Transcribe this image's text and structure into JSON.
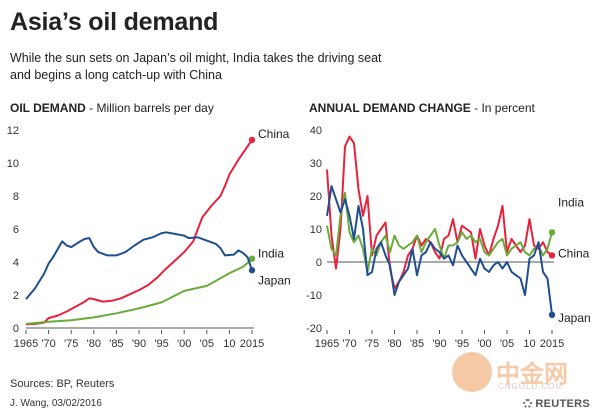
{
  "title": "Asia’s oil demand",
  "subtitle": [
    "While the sun sets on Japan’s oil might, India takes the driving seat",
    "and begins a long catch-up with China"
  ],
  "footer": {
    "sources": "Sources: BP, Reuters",
    "byline": "J. Wang, 03/02/2016",
    "logo": "REUTERS"
  },
  "watermark": {
    "text": "中金网",
    "url": "CNGOLD.COM"
  },
  "colors": {
    "china": "#e8213c",
    "india": "#6aab3a",
    "japan": "#1f4e91"
  },
  "chart_data": [
    {
      "type": "line",
      "title": "OIL DEMAND",
      "unit": "Million barrels per day",
      "ylim": [
        0,
        12
      ],
      "yticks": [
        0,
        2,
        4,
        6,
        8,
        10,
        12
      ],
      "xlim": [
        1965,
        2015
      ],
      "xtick_values": [
        1965,
        1970,
        1975,
        1980,
        1985,
        1990,
        1995,
        2000,
        2005,
        2010,
        2015
      ],
      "xtick_labels": [
        "1965",
        "'70",
        "'75",
        "'80",
        "'85",
        "'90",
        "'95",
        "'00",
        "'05",
        "10",
        "2015"
      ],
      "series": [
        {
          "name": "China",
          "key": "china",
          "x": [
            1965,
            1967,
            1969,
            1970,
            1972,
            1974,
            1976,
            1978,
            1979,
            1980,
            1982,
            1984,
            1986,
            1988,
            1990,
            1992,
            1994,
            1996,
            1998,
            2000,
            2002,
            2004,
            2006,
            2008,
            2009,
            2010,
            2012,
            2014,
            2015
          ],
          "values": [
            0.22,
            0.25,
            0.33,
            0.6,
            0.75,
            1.0,
            1.3,
            1.6,
            1.8,
            1.75,
            1.6,
            1.65,
            1.8,
            2.05,
            2.3,
            2.6,
            3.05,
            3.6,
            4.1,
            4.6,
            5.25,
            6.7,
            7.4,
            8.0,
            8.6,
            9.3,
            10.2,
            11.0,
            11.4
          ]
        },
        {
          "name": "India",
          "key": "india",
          "x": [
            1965,
            1970,
            1975,
            1980,
            1985,
            1990,
            1995,
            2000,
            2005,
            2010,
            2013,
            2015
          ],
          "values": [
            0.25,
            0.38,
            0.47,
            0.64,
            0.89,
            1.19,
            1.55,
            2.25,
            2.55,
            3.32,
            3.7,
            4.2
          ]
        },
        {
          "name": "Japan",
          "key": "japan",
          "x": [
            1965,
            1967,
            1969,
            1970,
            1971,
            1973,
            1974,
            1975,
            1977,
            1978,
            1979,
            1980,
            1981,
            1983,
            1985,
            1987,
            1989,
            1991,
            1993,
            1995,
            1996,
            1997,
            1999,
            2000,
            2001,
            2003,
            2005,
            2007,
            2008,
            2009,
            2011,
            2012,
            2013,
            2014,
            2015
          ],
          "values": [
            1.75,
            2.4,
            3.3,
            3.9,
            4.3,
            5.25,
            5.0,
            4.9,
            5.25,
            5.4,
            5.45,
            4.9,
            4.6,
            4.4,
            4.4,
            4.6,
            5.0,
            5.35,
            5.5,
            5.75,
            5.8,
            5.75,
            5.65,
            5.6,
            5.45,
            5.5,
            5.3,
            5.1,
            4.85,
            4.4,
            4.45,
            4.7,
            4.55,
            4.3,
            3.5
          ]
        }
      ]
    },
    {
      "type": "line",
      "title": "ANNUAL DEMAND CHANGE",
      "unit": "In percent",
      "ylim": [
        -20,
        40
      ],
      "yticks": [
        -20,
        -10,
        0,
        10,
        20,
        30,
        40
      ],
      "xlim": [
        1965,
        2015
      ],
      "xtick_values": [
        1965,
        1970,
        1975,
        1980,
        1985,
        1990,
        1995,
        2000,
        2005,
        2010,
        2015
      ],
      "xtick_labels": [
        "1965",
        "'70",
        "'75",
        "'80",
        "'85",
        "'90",
        "'95",
        "'00",
        "'05",
        "10",
        "2015"
      ],
      "series": [
        {
          "name": "China",
          "key": "china",
          "x": [
            1965,
            1966,
            1967,
            1968,
            1969,
            1970,
            1971,
            1972,
            1973,
            1974,
            1975,
            1976,
            1977,
            1978,
            1979,
            1980,
            1981,
            1982,
            1983,
            1984,
            1985,
            1986,
            1987,
            1988,
            1989,
            1990,
            1991,
            1992,
            1993,
            1994,
            1995,
            1996,
            1997,
            1998,
            1999,
            2000,
            2001,
            2002,
            2003,
            2004,
            2005,
            2006,
            2007,
            2008,
            2009,
            2010,
            2011,
            2012,
            2013,
            2014,
            2015
          ],
          "values": [
            28,
            8,
            -2,
            10,
            35,
            38,
            36,
            22,
            14,
            20,
            2,
            8,
            10,
            12,
            -2,
            -8,
            -6,
            -3,
            2,
            4,
            8,
            5,
            7,
            6,
            3,
            1,
            7,
            8,
            13,
            6,
            11,
            10,
            9,
            1,
            10,
            5,
            2,
            7,
            11,
            17,
            3,
            7,
            5,
            3,
            5,
            13,
            5,
            4,
            6,
            3,
            2
          ]
        },
        {
          "name": "India",
          "key": "india",
          "x": [
            1965,
            1966,
            1967,
            1968,
            1969,
            1970,
            1971,
            1972,
            1973,
            1974,
            1975,
            1976,
            1977,
            1978,
            1979,
            1980,
            1981,
            1982,
            1983,
            1984,
            1985,
            1986,
            1987,
            1988,
            1989,
            1990,
            1991,
            1992,
            1993,
            1994,
            1995,
            1996,
            1997,
            1998,
            1999,
            2000,
            2001,
            2002,
            2003,
            2004,
            2005,
            2006,
            2007,
            2008,
            2009,
            2010,
            2011,
            2012,
            2013,
            2014,
            2015
          ],
          "values": [
            11,
            4,
            2,
            14,
            21,
            9,
            6,
            8,
            4,
            -3,
            4,
            2,
            6,
            8,
            3,
            8,
            5,
            4,
            5,
            6,
            8,
            3,
            6,
            8,
            10,
            5,
            1,
            5,
            5,
            6,
            9,
            7,
            8,
            6,
            7,
            3,
            2,
            4,
            6,
            7,
            2,
            4,
            5,
            6,
            3,
            2,
            4,
            5,
            2,
            4,
            9
          ]
        },
        {
          "name": "Japan",
          "key": "japan",
          "x": [
            1965,
            1966,
            1967,
            1968,
            1969,
            1970,
            1971,
            1972,
            1973,
            1974,
            1975,
            1976,
            1977,
            1978,
            1979,
            1980,
            1981,
            1982,
            1983,
            1984,
            1985,
            1986,
            1987,
            1988,
            1989,
            1990,
            1991,
            1992,
            1993,
            1994,
            1995,
            1996,
            1997,
            1998,
            1999,
            2000,
            2001,
            2002,
            2003,
            2004,
            2005,
            2006,
            2007,
            2008,
            2009,
            2010,
            2011,
            2012,
            2013,
            2014,
            2015
          ],
          "values": [
            14,
            23,
            19,
            15,
            19,
            14,
            7,
            17,
            10,
            -4,
            -3,
            4,
            6,
            2,
            -1,
            -10,
            -6,
            -4,
            -2,
            4,
            -4,
            2,
            3,
            6,
            4,
            3,
            1,
            2,
            -1,
            5,
            2,
            0,
            -2,
            -4,
            1,
            -2,
            -3,
            -1,
            0,
            -2,
            0,
            -3,
            -4,
            -5,
            -10,
            1,
            2,
            6,
            -3,
            -5,
            -16
          ]
        }
      ]
    }
  ]
}
